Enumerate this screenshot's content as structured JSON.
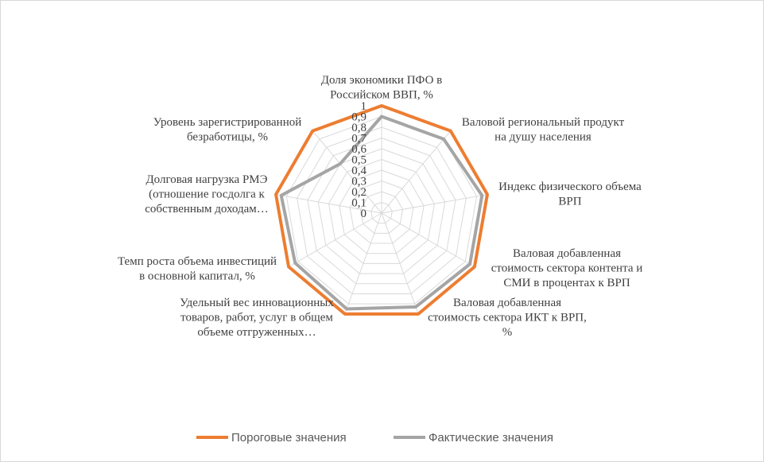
{
  "chart_data": {
    "type": "radar",
    "categories": [
      "Доля экономики ПФО в\nРоссийском ВВП, %",
      "Валовой региональный  продукт\nна душу населения",
      "Индекс физического объема\nВРП",
      "Валовая добавленная\nстоимость сектора контента и\nСМИ в процентах  к ВРП",
      "Валовая добавленная\nстоимость сектора ИКТ к ВРП,\n%",
      "Удельный вес инновационных\nтоваров, работ, услуг в общем\nобъеме отгруженных…",
      "Темп роста объема инвестиций\nв основной капитал,  %",
      "Долговая нагрузка РМЭ\n(отношение госдолга к\nсобственным доходам…",
      "Уровень зарегистрированной\nбезработицы, %"
    ],
    "series": [
      {
        "name": "Пороговые значения",
        "color": "#ed7d31",
        "values": [
          1,
          1,
          1,
          1,
          1,
          1,
          1,
          1,
          1
        ]
      },
      {
        "name": "Фактические значения",
        "color": "#a5a5a5",
        "values": [
          0.9,
          0.9,
          0.95,
          0.95,
          0.93,
          0.95,
          0.93,
          0.95,
          0.6
        ]
      }
    ],
    "rlim": [
      0,
      1
    ],
    "rticks": [
      0,
      {
        "value": 0.1,
        "label": "0,1"
      },
      {
        "value": 0.2,
        "label": "0,2"
      },
      {
        "value": 0.3,
        "label": "0,3"
      },
      {
        "value": 0.4,
        "label": "0,4"
      },
      {
        "value": 0.5,
        "label": "0,5"
      },
      {
        "value": 0.6,
        "label": "0,6"
      },
      {
        "value": 0.7,
        "label": "0,7"
      },
      {
        "value": 0.8,
        "label": "0,8"
      },
      {
        "value": 0.9,
        "label": "0,9"
      },
      1
    ],
    "grid": true,
    "legend": "bottom"
  }
}
